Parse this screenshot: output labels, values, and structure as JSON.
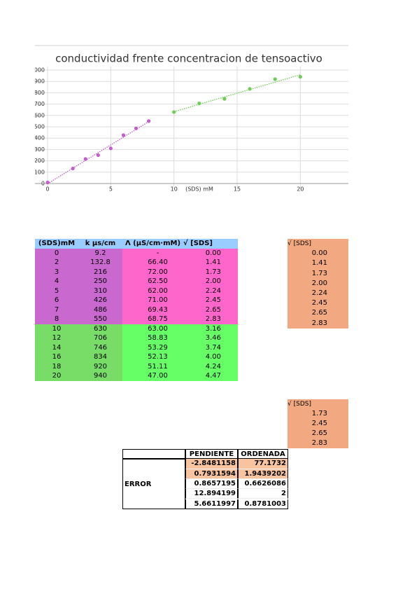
{
  "chart_data": {
    "type": "scatter",
    "title": "conductividad frente concentracion de tensoactivo",
    "x_label": "(SDS) mM",
    "xlim": [
      -1,
      23.8
    ],
    "xticks": [
      0,
      5,
      10,
      15,
      20
    ],
    "ylim": [
      0,
      1000
    ],
    "yticks": [
      0,
      100,
      200,
      300,
      400,
      500,
      600,
      700,
      800,
      900,
      1000
    ],
    "grid": true,
    "trendline": true,
    "series": [
      {
        "color": "#c15fc8",
        "x": [
          0,
          2,
          3,
          4,
          5,
          6,
          7,
          8
        ],
        "values": [
          9.2,
          132.8,
          216,
          250,
          310,
          426,
          486,
          550
        ]
      },
      {
        "color": "#6fcc55",
        "x": [
          10,
          12,
          14,
          16,
          18,
          20
        ],
        "values": [
          630,
          706,
          746,
          834,
          920,
          940
        ]
      }
    ]
  },
  "table1": {
    "header": [
      "(SDS)mM",
      "k µs/cm",
      "Λ (µS/cm·mM)",
      "√ [SDS]"
    ],
    "rows": [
      [
        "0",
        "9.2",
        "-",
        "0.00"
      ],
      [
        "2",
        "132.8",
        "66.40",
        "1.41"
      ],
      [
        "3",
        "216",
        "72.00",
        "1.73"
      ],
      [
        "4",
        "250",
        "62.50",
        "2.00"
      ],
      [
        "5",
        "310",
        "62.00",
        "2.24"
      ],
      [
        "6",
        "426",
        "71.00",
        "2.45"
      ],
      [
        "7",
        "486",
        "69.43",
        "2.65"
      ],
      [
        "8",
        "550",
        "68.75",
        "2.83"
      ],
      [
        "10",
        "630",
        "63.00",
        "3.16"
      ],
      [
        "12",
        "706",
        "58.83",
        "3.46"
      ],
      [
        "14",
        "746",
        "53.29",
        "3.74"
      ],
      [
        "16",
        "834",
        "52.13",
        "4.00"
      ],
      [
        "18",
        "920",
        "51.11",
        "4.24"
      ],
      [
        "20",
        "940",
        "47.00",
        "4.47"
      ]
    ]
  },
  "table2": {
    "header": "√ [SDS]",
    "rows": [
      "0.00",
      "1.41",
      "1.73",
      "2.00",
      "2.24",
      "2.45",
      "2.65",
      "2.83"
    ]
  },
  "table3": {
    "header": "√ [SDS]",
    "rows": [
      "1.73",
      "2.45",
      "2.65",
      "2.83"
    ]
  },
  "table4": {
    "header": [
      "PENDIENTE",
      "ORDENADA"
    ],
    "row_label": "ERROR",
    "rows": [
      [
        "-2.8481158",
        "77.1732"
      ],
      [
        "0.7931594",
        "1.9439202"
      ],
      [
        "0.8657195",
        "0.6626086"
      ],
      [
        "12.894199",
        "2"
      ],
      [
        "5.6611997",
        "0.8781003"
      ]
    ]
  }
}
